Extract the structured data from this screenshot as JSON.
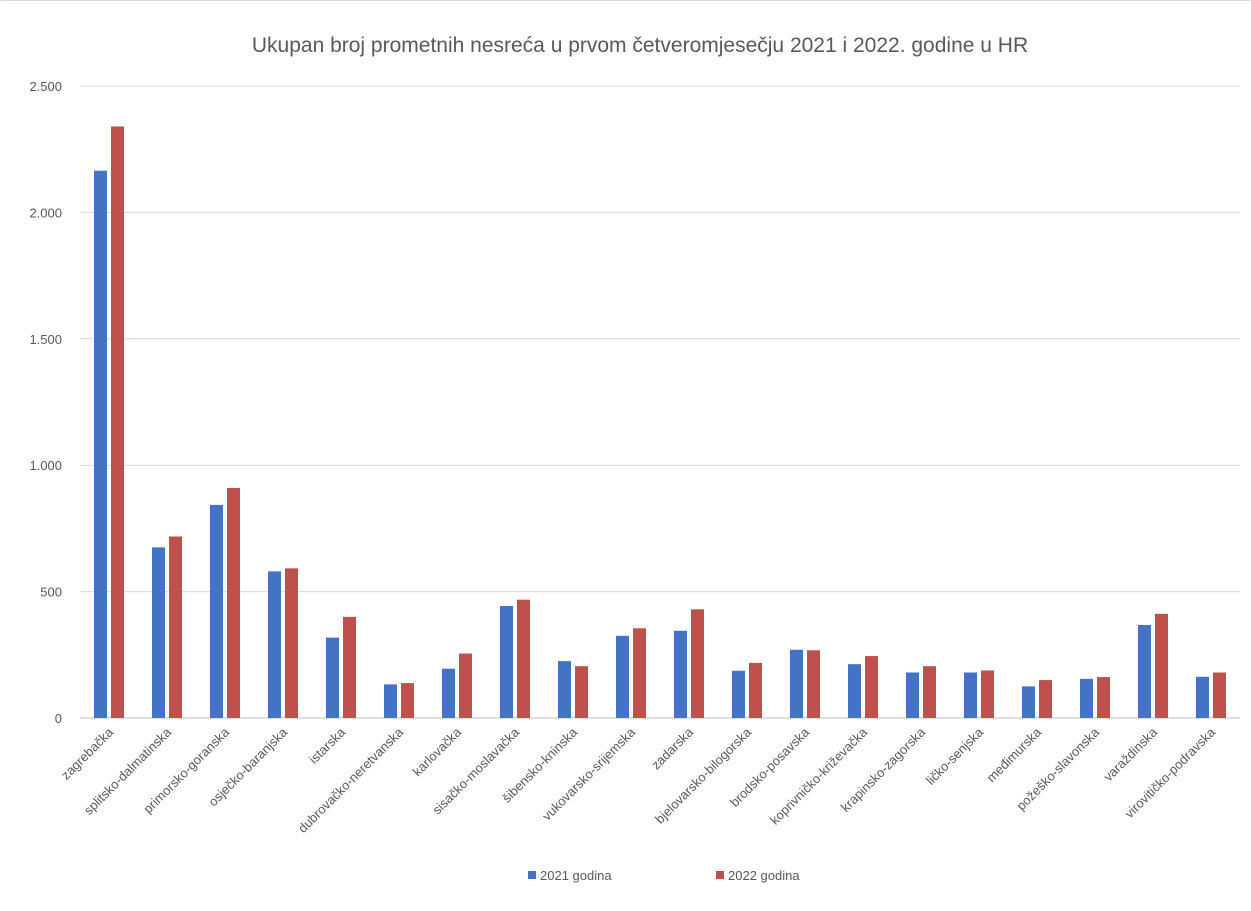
{
  "chart_data": {
    "type": "bar",
    "title": "Ukupan broj prometnih nesreća u prvom četveromjesečju 2021 i 2022. godine u HR",
    "xlabel": "",
    "ylabel": "",
    "ylim": [
      0,
      2500
    ],
    "yticks": [
      0,
      500,
      1000,
      1500,
      2000,
      2500
    ],
    "ytick_labels": [
      "0",
      "500",
      "1.000",
      "1.500",
      "2.000",
      "2.500"
    ],
    "grid": true,
    "legend_position": "bottom",
    "categories": [
      "zagrebačka",
      "splitsko-dalmatinska",
      "primorsko-goranska",
      "osječko-baranjska",
      "istarska",
      "dubrovačko-neretvanska",
      "karlovačka",
      "sisačko-moslavačka",
      "šibensko-kninska",
      "vukovarsko-srijemska",
      "zadarska",
      "bjelovarsko-bilogorska",
      "brodsko-posavska",
      "koprivničko-križevačka",
      "krapinsko-zagorska",
      "ličko-senjska",
      "međimurska",
      "požeško-slavonska",
      "varaždinska",
      "virovitičko-podravska"
    ],
    "series": [
      {
        "name": "2021 godina",
        "color": "#4472c4",
        "values": [
          2165,
          675,
          843,
          580,
          318,
          133,
          195,
          443,
          225,
          325,
          345,
          187,
          270,
          213,
          180,
          180,
          125,
          155,
          368,
          163
        ]
      },
      {
        "name": "2022 godina",
        "color": "#c0504d",
        "values": [
          2340,
          718,
          910,
          592,
          400,
          138,
          255,
          468,
          205,
          355,
          430,
          218,
          268,
          245,
          205,
          188,
          150,
          162,
          412,
          180
        ]
      }
    ]
  }
}
